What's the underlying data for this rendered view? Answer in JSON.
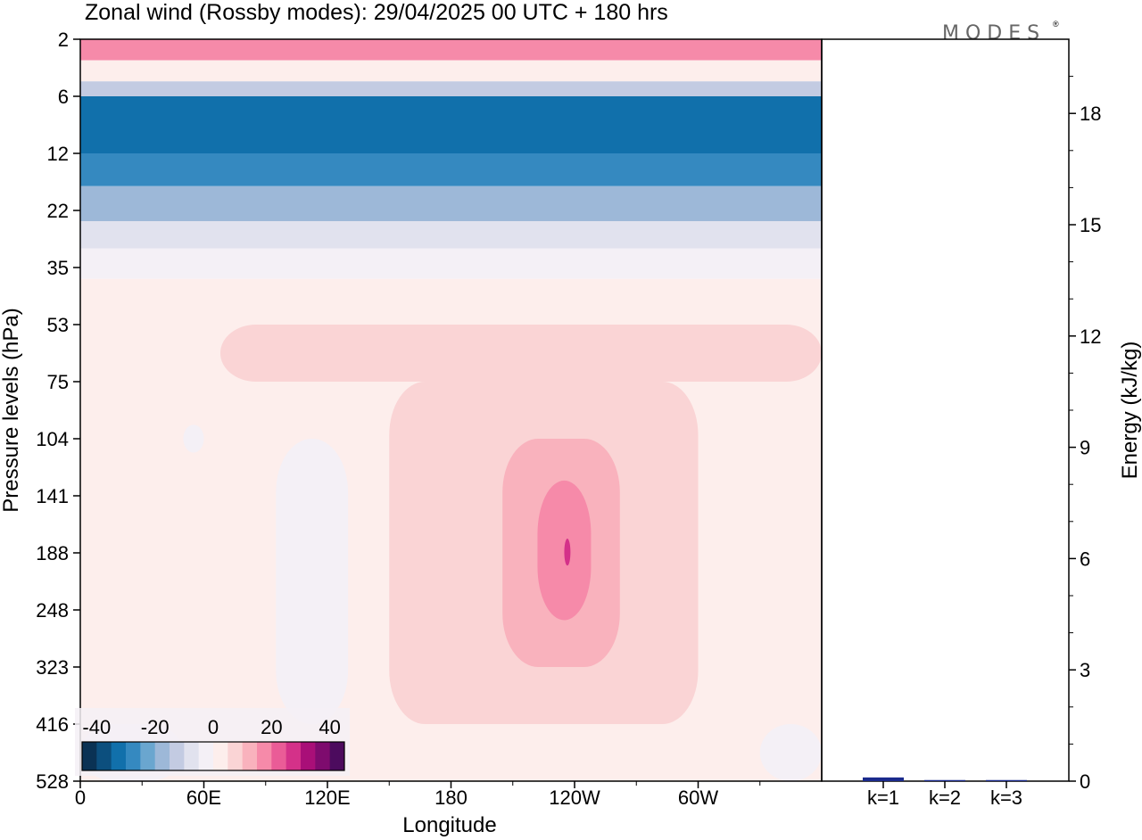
{
  "chart_data": [
    {
      "type": "heatmap",
      "title": "Zonal wind (Rossby modes):  29/04/2025  00 UTC  + 180 hrs",
      "xlabel": "Longitude",
      "ylabel": "Pressure levels (hPa)",
      "x_ticks": [
        "0",
        "60E",
        "120E",
        "180",
        "120W",
        "60W"
      ],
      "y_ticks": [
        "2",
        "6",
        "12",
        "22",
        "35",
        "53",
        "75",
        "104",
        "141",
        "188",
        "248",
        "323",
        "416",
        "528"
      ],
      "colorbar": {
        "tick_labels": [
          "-40",
          "-20",
          "0",
          "20",
          "40"
        ],
        "range": [
          -45,
          45
        ],
        "colors": [
          "#0a3254",
          "#0c4f7e",
          "#1170ab",
          "#3589c0",
          "#6aa6cf",
          "#9db8d8",
          "#c3cbe2",
          "#e1e2ee",
          "#f4f0f6",
          "#fdeeec",
          "#fad4d5",
          "#f9b2bd",
          "#f68aa9",
          "#ea5c97",
          "#d43189",
          "#a90f78",
          "#7e0b6e",
          "#4c0b5e"
        ]
      },
      "zonal_wind_regions": [
        {
          "lon": [
            0,
            360
          ],
          "hPa": [
            2,
            3
          ],
          "value": 16
        },
        {
          "lon": [
            0,
            360
          ],
          "hPa": [
            3,
            4.5
          ],
          "value": 4
        },
        {
          "lon": [
            0,
            360
          ],
          "hPa": [
            4.5,
            6
          ],
          "value": -12
        },
        {
          "lon": [
            0,
            360
          ],
          "hPa": [
            6,
            12
          ],
          "value": -32
        },
        {
          "lon": [
            0,
            360
          ],
          "hPa": [
            12,
            17
          ],
          "value": -26
        },
        {
          "lon": [
            0,
            360
          ],
          "hPa": [
            17,
            24
          ],
          "value": -18
        },
        {
          "lon": [
            0,
            360
          ],
          "hPa": [
            24,
            30
          ],
          "value": -10
        },
        {
          "lon": [
            0,
            360
          ],
          "hPa": [
            30,
            38
          ],
          "value": -3
        },
        {
          "lon": [
            0,
            360
          ],
          "hPa": [
            38,
            528
          ],
          "value": 2
        },
        {
          "lon": [
            68,
            360
          ],
          "hPa": [
            53,
            75
          ],
          "value": 6
        },
        {
          "lon": [
            150,
            300
          ],
          "hPa": [
            75,
            416
          ],
          "value": 7
        },
        {
          "lon": [
            205,
            262
          ],
          "hPa": [
            104,
            323
          ],
          "value": 12
        },
        {
          "lon": [
            222,
            248
          ],
          "hPa": [
            130,
            260
          ],
          "value": 18
        },
        {
          "lon": [
            235,
            238
          ],
          "hPa": [
            175,
            200
          ],
          "value": 26
        },
        {
          "lon": [
            95,
            130
          ],
          "hPa": [
            104,
            416
          ],
          "value": -4
        },
        {
          "lon": [
            50,
            60
          ],
          "hPa": [
            96,
            112
          ],
          "value": -4
        },
        {
          "lon": [
            0,
            50
          ],
          "hPa": [
            416,
            528
          ],
          "value": -4
        },
        {
          "lon": [
            330,
            360
          ],
          "hPa": [
            416,
            528
          ],
          "value": -4
        }
      ]
    },
    {
      "type": "bar",
      "categories": [
        "k=1",
        "k=2",
        "k=3"
      ],
      "values": [
        0.1,
        0.03,
        0.03
      ],
      "ylabel": "Energy (kJ/kg)",
      "ylim": [
        0,
        20
      ],
      "y_ticks": [
        "0",
        "3",
        "6",
        "9",
        "12",
        "15",
        "18"
      ],
      "bar_color": "#1a2a8c"
    }
  ],
  "brand": "MODES",
  "brand_mark": "®"
}
